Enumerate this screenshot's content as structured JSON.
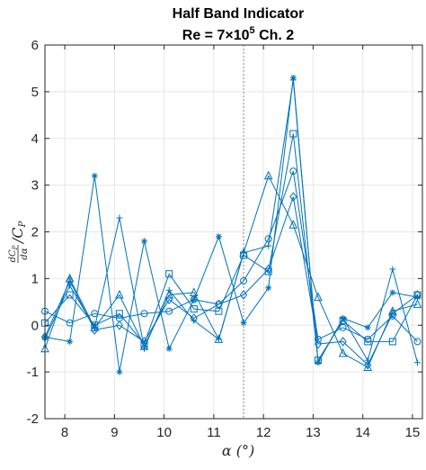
{
  "chart_data": {
    "type": "line",
    "title_line1": "Half Band Indicator",
    "title_line2_prefix": "Re = 7×10",
    "title_line2_exp": "5",
    "title_line2_suffix": " Ch. 2",
    "xlabel": "α (°)",
    "ylabel_numerator": "dC",
    "ylabel_numerator_sub": "P",
    "ylabel_denominator": "dα",
    "ylabel_rest": "/C",
    "ylabel_rest_sub": "P",
    "xlim": [
      7.6,
      15.2
    ],
    "ylim": [
      -2,
      6
    ],
    "xticks": [
      8,
      9,
      10,
      11,
      12,
      13,
      14,
      15
    ],
    "yticks": [
      -2,
      -1,
      0,
      1,
      2,
      3,
      4,
      5,
      6
    ],
    "grid": true,
    "vline_x": 11.6,
    "line_color": "#0072BD",
    "x": [
      7.6,
      8.1,
      8.6,
      9.1,
      9.6,
      10.1,
      10.6,
      11.1,
      11.6,
      12.1,
      12.6,
      13.1,
      13.6,
      14.1,
      14.6,
      15.1
    ],
    "series": [
      {
        "marker": "circle",
        "values": [
          0.3,
          0.05,
          0.25,
          0.15,
          0.25,
          0.3,
          0.55,
          0.45,
          0.95,
          1.85,
          3.3,
          -0.3,
          -0.05,
          -0.3,
          0.2,
          -0.35
        ]
      },
      {
        "marker": "square",
        "values": [
          0.05,
          0.65,
          0.0,
          0.25,
          -0.4,
          1.1,
          0.35,
          0.3,
          1.5,
          1.15,
          4.1,
          -0.75,
          0.1,
          -0.35,
          -0.35,
          0.65
        ]
      },
      {
        "marker": "diamond",
        "values": [
          -0.25,
          0.95,
          -0.1,
          0.0,
          -0.35,
          0.55,
          0.15,
          0.45,
          0.65,
          1.2,
          2.75,
          -0.4,
          -0.35,
          -0.85,
          0.25,
          0.65
        ]
      },
      {
        "marker": "triangle",
        "values": [
          -0.5,
          1.0,
          -0.05,
          0.65,
          -0.45,
          0.65,
          0.7,
          -0.3,
          1.55,
          3.2,
          2.15,
          0.6,
          -0.6,
          -0.9,
          0.3,
          0.45
        ]
      },
      {
        "marker": "asterisk",
        "values": [
          -0.25,
          -0.35,
          3.2,
          -1.0,
          1.8,
          -0.5,
          0.55,
          1.9,
          0.05,
          0.8,
          5.3,
          -0.8,
          0.15,
          -0.05,
          0.7,
          0.6
        ]
      },
      {
        "marker": "plus",
        "values": [
          -0.3,
          0.85,
          -0.05,
          2.3,
          -0.5,
          0.75,
          0.1,
          -0.3,
          1.55,
          1.7,
          5.25,
          -0.8,
          0.15,
          -0.75,
          1.2,
          -0.8
        ]
      }
    ]
  }
}
